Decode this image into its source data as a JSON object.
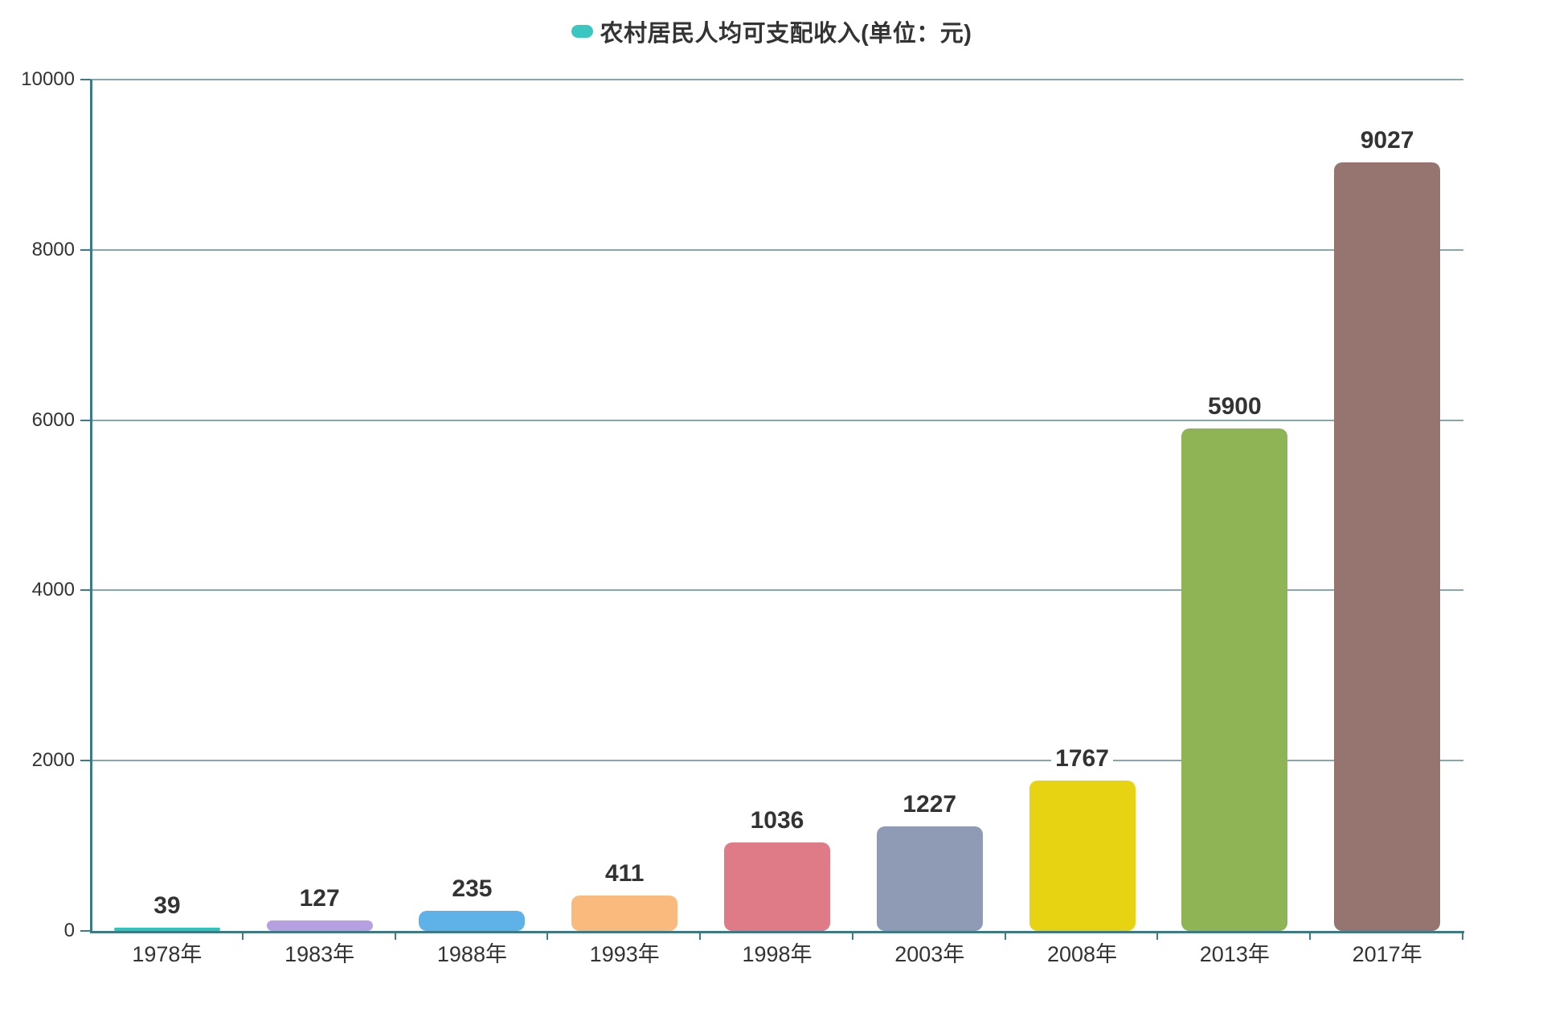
{
  "legend": {
    "label": "农村居民人均可支配收入(单位：元)",
    "marker_color": "#3bc7c1"
  },
  "chart_data": {
    "type": "bar",
    "title": "农村居民人均可支配收入(单位：元)",
    "categories": [
      "1978年",
      "1983年",
      "1988年",
      "1993年",
      "1998年",
      "2003年",
      "2008年",
      "2013年",
      "2017年"
    ],
    "values": [
      39,
      127,
      235,
      411,
      1036,
      1227,
      1767,
      5900,
      9027
    ],
    "bar_colors": [
      "#2fc3bd",
      "#b7a0e2",
      "#5fb2e8",
      "#fbba7d",
      "#df7a87",
      "#8f9bb5",
      "#e8d313",
      "#8fb455",
      "#967571"
    ],
    "ylim": [
      0,
      10000
    ],
    "yticks": [
      0,
      2000,
      4000,
      6000,
      8000,
      10000
    ],
    "grid": true,
    "legend_position": "top",
    "xlabel": "",
    "ylabel": "",
    "axis_color": "#3d7a87",
    "grid_color": "#86a8ad",
    "text_color": "#333333"
  }
}
